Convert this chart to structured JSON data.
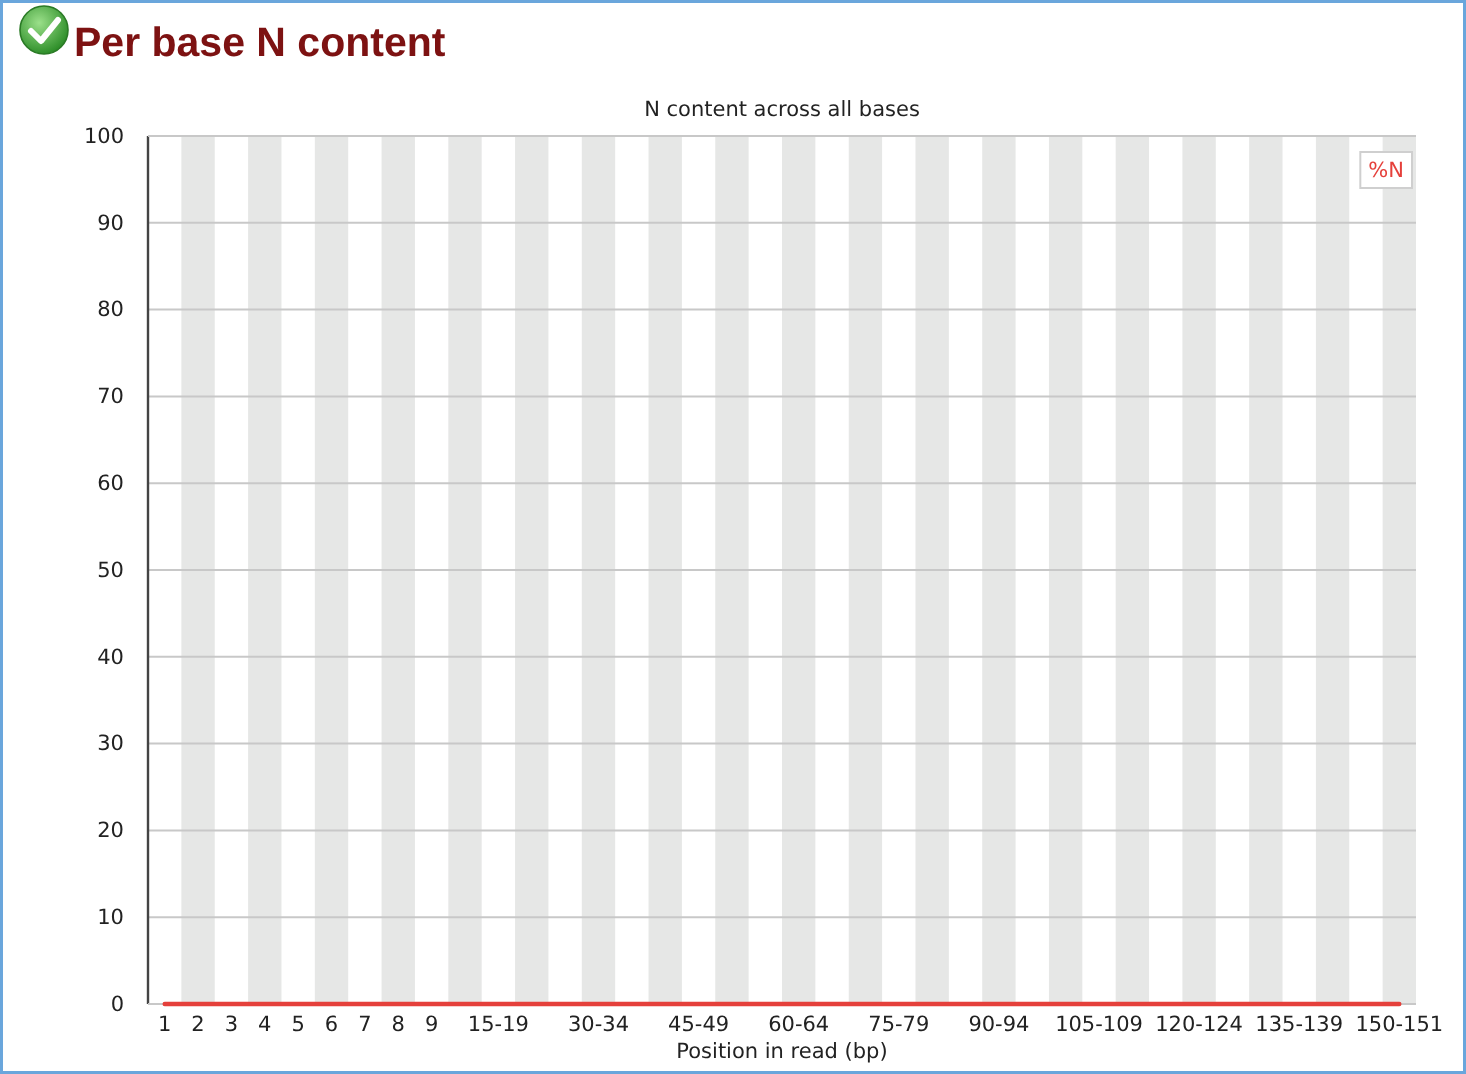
{
  "chart_data": {
    "type": "line",
    "title": "Per base N content",
    "subtitle": "N content across all bases",
    "xlabel": "Position in read (bp)",
    "categories": [
      "1",
      "2",
      "3",
      "4",
      "5",
      "6",
      "7",
      "8",
      "9",
      null,
      "15-19",
      null,
      null,
      "30-34",
      null,
      null,
      "45-49",
      null,
      null,
      "60-64",
      null,
      null,
      "75-79",
      null,
      null,
      "90-94",
      null,
      null,
      "105-109",
      null,
      null,
      "120-124",
      null,
      null,
      "135-139",
      null,
      null,
      "150-151"
    ],
    "series": [
      {
        "name": "%N",
        "color": "#e5403b",
        "values": [
          0,
          0,
          0,
          0,
          0,
          0,
          0,
          0,
          0,
          0,
          0,
          0,
          0,
          0,
          0,
          0,
          0,
          0,
          0,
          0,
          0,
          0,
          0,
          0,
          0,
          0,
          0,
          0,
          0,
          0,
          0,
          0,
          0,
          0,
          0,
          0,
          0,
          0
        ]
      }
    ],
    "ylim": [
      0,
      100
    ],
    "yticks": [
      0,
      10,
      20,
      30,
      40,
      50,
      60,
      70,
      80,
      90,
      100
    ],
    "grid": "y",
    "legend": "top right"
  }
}
